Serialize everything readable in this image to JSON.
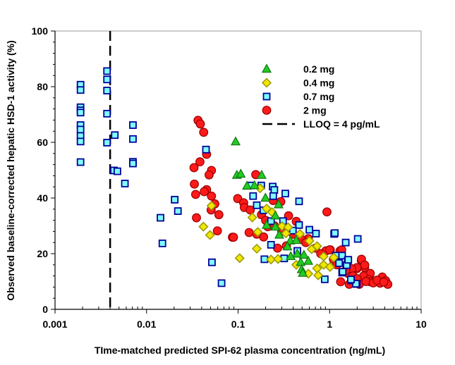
{
  "chart_data": {
    "type": "scatter",
    "title": "",
    "xlabel": "TIme-matched predicted SPI-62 plasma concentration (ng/mL)",
    "ylabel": "Observed baseline-corrected hepatic HSD-1 activity (%)",
    "xscale": "log",
    "xlim": [
      0.001,
      10
    ],
    "ylim": [
      0,
      100
    ],
    "xticks": [
      0.001,
      0.01,
      0.1,
      1,
      10
    ],
    "xtick_labels": [
      "0.001",
      "0.01",
      "0.1",
      "1",
      "10"
    ],
    "yticks": [
      0,
      20,
      40,
      60,
      80,
      100
    ],
    "ytick_labels": [
      "0",
      "20",
      "40",
      "60",
      "80",
      "100"
    ],
    "grid": false,
    "legend_position": "top-right",
    "reference_lines": [
      {
        "name": "LLOQ = 4 pg/mL",
        "orientation": "vertical",
        "x": 0.004,
        "style": "dashed",
        "color": "#000000"
      }
    ],
    "series": [
      {
        "name": "2 mg",
        "marker": "circle",
        "fill": "#ff1a1a",
        "stroke": "#990000",
        "points": [
          [
            0.0365,
            67.9
          ],
          [
            0.0387,
            66.6
          ],
          [
            0.0421,
            63.6
          ],
          [
            0.0453,
            55.7
          ],
          [
            0.0383,
            53
          ],
          [
            0.033,
            50.9
          ],
          [
            0.0512,
            49.9
          ],
          [
            0.0482,
            48.3
          ],
          [
            0.0333,
            45
          ],
          [
            0.0453,
            43
          ],
          [
            0.0427,
            42.3
          ],
          [
            0.0344,
            41.3
          ],
          [
            0.0512,
            40.7
          ],
          [
            0.0557,
            37.9
          ],
          [
            0.0508,
            35.7
          ],
          [
            0.0617,
            34
          ],
          [
            0.0351,
            32.9
          ],
          [
            0.0594,
            28.2
          ],
          [
            0.0868,
            25.9
          ],
          [
            0.156,
            48.4
          ],
          [
            0.099,
            39.8
          ],
          [
            0.115,
            38.3
          ],
          [
            0.117,
            36.6
          ],
          [
            0.136,
            35.7
          ],
          [
            0.293,
            38.7
          ],
          [
            0.242,
            39.1
          ],
          [
            0.935,
            35
          ],
          [
            0.132,
            27.6
          ],
          [
            0.089,
            25.9
          ],
          [
            0.211,
            29.7
          ],
          [
            0.356,
            33.6
          ],
          [
            0.432,
            31.6
          ],
          [
            0.27,
            22
          ],
          [
            0.337,
            22.8
          ],
          [
            0.585,
            25.4
          ],
          [
            0.91,
            21
          ],
          [
            1.016,
            21.4
          ],
          [
            1.3,
            21
          ],
          [
            2.22,
            17.6
          ],
          [
            2.41,
            15
          ],
          [
            1.98,
            14.6
          ],
          [
            2.75,
            12.5
          ],
          [
            3.71,
            11.2
          ],
          [
            1.0,
            21.4
          ],
          [
            1.355,
            21.4
          ],
          [
            2.23,
            18
          ],
          [
            2.42,
            15.9
          ],
          [
            1.99,
            15
          ],
          [
            2.78,
            12.9
          ],
          [
            2.35,
            12
          ],
          [
            2.7,
            10.7
          ],
          [
            3.76,
            11.6
          ],
          [
            4.09,
            10.3
          ],
          [
            4.32,
            9
          ],
          [
            3.56,
            9.4
          ],
          [
            2.11,
            9
          ],
          [
            1.64,
            9
          ],
          [
            1.32,
            9.9
          ],
          [
            1.6,
            12.9
          ],
          [
            1.74,
            14.6
          ],
          [
            2.78,
            9.9
          ],
          [
            0.18,
            34
          ],
          [
            0.2,
            32
          ],
          [
            0.25,
            30
          ],
          [
            0.3,
            28
          ],
          [
            0.4,
            27
          ],
          [
            0.5,
            25
          ],
          [
            0.55,
            24
          ],
          [
            0.7,
            22
          ],
          [
            0.8,
            20
          ],
          [
            1.1,
            18
          ],
          [
            1.2,
            16
          ],
          [
            1.5,
            14
          ],
          [
            1.8,
            12
          ],
          [
            2.0,
            11
          ],
          [
            2.5,
            10
          ],
          [
            3.0,
            9.5
          ],
          [
            3.3,
            10.5
          ],
          [
            3.9,
            9.8
          ],
          [
            0.19,
            26
          ],
          [
            0.16,
            27
          ]
        ]
      },
      {
        "name": "0.7 mg",
        "marker": "square",
        "fill": "#80ffff",
        "stroke": "#000099",
        "points": [
          [
            0.0019,
            80.7
          ],
          [
            0.0019,
            78.8
          ],
          [
            0.0019,
            72.6
          ],
          [
            0.0019,
            71.5
          ],
          [
            0.0019,
            70.7
          ],
          [
            0.0019,
            66.2
          ],
          [
            0.0019,
            64.6
          ],
          [
            0.0019,
            62.3
          ],
          [
            0.0019,
            60.3
          ],
          [
            0.0019,
            52.9
          ],
          [
            0.0037,
            85.6
          ],
          [
            0.0037,
            82.6
          ],
          [
            0.0037,
            78.6
          ],
          [
            0.0037,
            70.3
          ],
          [
            0.0037,
            59.9
          ],
          [
            0.0045,
            62.6
          ],
          [
            0.0071,
            66.2
          ],
          [
            0.0071,
            61.2
          ],
          [
            0.0071,
            53
          ],
          [
            0.0071,
            52.4
          ],
          [
            0.0044,
            49.9
          ],
          [
            0.0048,
            49.6
          ],
          [
            0.0058,
            45.2
          ],
          [
            0.0142,
            32.9
          ],
          [
            0.0149,
            23.7
          ],
          [
            0.0203,
            39.4
          ],
          [
            0.022,
            35.3
          ],
          [
            0.0446,
            57.4
          ],
          [
            0.0518,
            16.9
          ],
          [
            0.066,
            9.4
          ],
          [
            0.139,
            44.5
          ],
          [
            0.179,
            44.5
          ],
          [
            0.239,
            44.1
          ],
          [
            0.249,
            42.9
          ],
          [
            0.328,
            41.6
          ],
          [
            0.146,
            40.7
          ],
          [
            0.242,
            40.7
          ],
          [
            0.464,
            38.8
          ],
          [
            0.16,
            37.4
          ],
          [
            0.189,
            35.6
          ],
          [
            0.229,
            31.7
          ],
          [
            0.31,
            31.7
          ],
          [
            0.464,
            30.3
          ],
          [
            0.397,
            28.3
          ],
          [
            0.601,
            28.6
          ],
          [
            0.71,
            27.2
          ],
          [
            1.12,
            27.1
          ],
          [
            2.03,
            25.3
          ],
          [
            1.5,
            24.0
          ],
          [
            0.229,
            23.2
          ],
          [
            0.444,
            21
          ],
          [
            1.17,
            19.3
          ],
          [
            1.37,
            19.3
          ],
          [
            1.58,
            17.6
          ],
          [
            0.194,
            18
          ],
          [
            0.319,
            18.3
          ],
          [
            1.27,
            16.6
          ],
          [
            1.54,
            15.9
          ],
          [
            0.885,
            10.8
          ],
          [
            1.37,
            13.2
          ],
          [
            1.72,
            10.4
          ],
          [
            1.98,
            9.1
          ],
          [
            1.94,
            9.2
          ],
          [
            1.71,
            10.7
          ],
          [
            1.39,
            13.5
          ],
          [
            1.14,
            27.4
          ],
          [
            1.6,
            17.8
          ]
        ]
      },
      {
        "name": "0.4 mg",
        "marker": "diamond",
        "fill": "#f2e600",
        "stroke": "#999900",
        "points": [
          [
            0.0512,
            37.2
          ],
          [
            0.0418,
            29.7
          ],
          [
            0.0493,
            26.7
          ],
          [
            0.174,
            43.5
          ],
          [
            0.205,
            36.2
          ],
          [
            0.235,
            34.9
          ],
          [
            0.143,
            33
          ],
          [
            0.164,
            27.8
          ],
          [
            0.302,
            29.9
          ],
          [
            0.352,
            29.5
          ],
          [
            0.333,
            27.3
          ],
          [
            0.474,
            27.1
          ],
          [
            0.602,
            24.6
          ],
          [
            0.73,
            22.7
          ],
          [
            0.636,
            21.6
          ],
          [
            0.16,
            21.8
          ],
          [
            0.104,
            18.4
          ],
          [
            0.229,
            17.9
          ],
          [
            0.273,
            18.1
          ],
          [
            0.86,
            19
          ],
          [
            1.11,
            18.6
          ],
          [
            1.01,
            15.2
          ],
          [
            0.73,
            14.7
          ],
          [
            0.86,
            16
          ],
          [
            0.432,
            16
          ],
          [
            0.75,
            12.2
          ],
          [
            0.585,
            12.8
          ]
        ]
      },
      {
        "name": "0.2 mg",
        "marker": "triangle",
        "fill": "#22cc22",
        "stroke": "#117711",
        "points": [
          [
            0.094,
            60.2
          ],
          [
            0.097,
            48.2
          ],
          [
            0.107,
            48.6
          ],
          [
            0.181,
            48.2
          ],
          [
            0.125,
            44.3
          ],
          [
            0.151,
            44.5
          ],
          [
            0.199,
            40
          ],
          [
            0.277,
            37.6
          ],
          [
            0.255,
            33.6
          ],
          [
            0.205,
            30.2
          ],
          [
            0.255,
            29.6
          ],
          [
            0.282,
            26.7
          ],
          [
            0.372,
            24.6
          ],
          [
            0.432,
            24.8
          ],
          [
            0.346,
            22.5
          ],
          [
            0.443,
            19.9
          ],
          [
            0.524,
            19.5
          ],
          [
            0.376,
            19
          ],
          [
            0.483,
            16.9
          ],
          [
            0.585,
            17.3
          ],
          [
            0.495,
            14.3
          ],
          [
            0.509,
            13
          ]
        ]
      }
    ],
    "legend": [
      {
        "label": "0.2 mg",
        "marker": "triangle",
        "fill": "#22cc22",
        "stroke": "#117711"
      },
      {
        "label": "0.4 mg",
        "marker": "diamond",
        "fill": "#f2e600",
        "stroke": "#999900"
      },
      {
        "label": "0.7 mg",
        "marker": "square",
        "fill": "#80ffff",
        "stroke": "#000099"
      },
      {
        "label": "2 mg",
        "marker": "circle",
        "fill": "#ff1a1a",
        "stroke": "#990000"
      },
      {
        "label": "LLOQ = 4 pg/mL",
        "marker": "dashed-line",
        "fill": "#000000",
        "stroke": "#000000"
      }
    ]
  }
}
